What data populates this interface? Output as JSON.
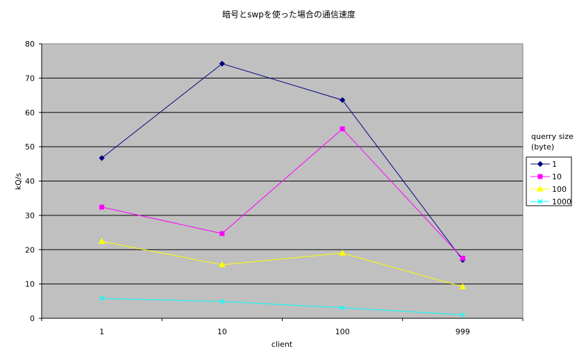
{
  "chart_data": {
    "type": "line",
    "title": "暗号とswpを使った場合の通信速度",
    "xlabel": "client",
    "ylabel": "kQ/s",
    "categories": [
      "1",
      "10",
      "100",
      "999"
    ],
    "ylim": [
      0,
      80
    ],
    "yticks": [
      "0",
      "10",
      "20",
      "30",
      "40",
      "50",
      "60",
      "70",
      "80"
    ],
    "grid": true,
    "legend": {
      "title_line1": "querry size",
      "title_line2": "(byte)",
      "placement": "right"
    },
    "series": [
      {
        "name": "1",
        "values": [
          46.7,
          74.2,
          63.6,
          17.0
        ],
        "color": "#000080",
        "marker": "diamond"
      },
      {
        "name": "10",
        "values": [
          32.4,
          24.7,
          55.2,
          17.5
        ],
        "color": "#ff00ff",
        "marker": "square"
      },
      {
        "name": "100",
        "values": [
          22.4,
          15.6,
          19.0,
          9.2
        ],
        "color": "#ffff00",
        "marker": "triangle"
      },
      {
        "name": "1000",
        "values": [
          5.8,
          4.9,
          3.1,
          1.0
        ],
        "color": "#00ffff",
        "marker": "x"
      }
    ]
  }
}
